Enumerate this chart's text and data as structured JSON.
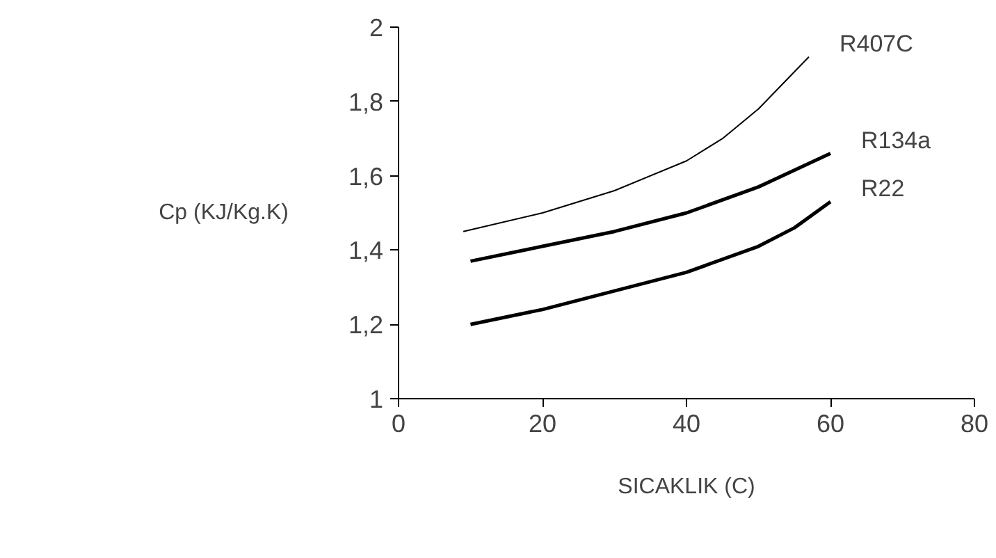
{
  "chart_data": {
    "type": "line",
    "xlabel": "SICAKLIK (C)",
    "ylabel": "Cp (KJ/Kg.K)",
    "xlim": [
      0,
      80
    ],
    "ylim": [
      1,
      2
    ],
    "xticks": [
      0,
      20,
      40,
      60,
      80
    ],
    "yticks": [
      1,
      {
        "value": 1.2,
        "label": "1,2"
      },
      {
        "value": 1.4,
        "label": "1,4"
      },
      {
        "value": 1.6,
        "label": "1,6"
      },
      {
        "value": 1.8,
        "label": "1,8"
      },
      2
    ],
    "grid": false,
    "marker": "none",
    "line_style": "solid",
    "series": [
      {
        "name": "R407C",
        "color": "#000000",
        "x": [
          9,
          20,
          30,
          40,
          45,
          50,
          57
        ],
        "values": [
          1.45,
          1.5,
          1.56,
          1.64,
          1.7,
          1.78,
          1.92
        ]
      },
      {
        "name": "R134a",
        "color": "#000000",
        "x": [
          10,
          20,
          30,
          40,
          50,
          60
        ],
        "values": [
          1.37,
          1.41,
          1.45,
          1.5,
          1.57,
          1.66
        ]
      },
      {
        "name": "R22",
        "color": "#000000",
        "x": [
          10,
          20,
          30,
          40,
          50,
          55,
          60
        ],
        "values": [
          1.2,
          1.24,
          1.29,
          1.34,
          1.41,
          1.46,
          1.53
        ]
      }
    ]
  }
}
